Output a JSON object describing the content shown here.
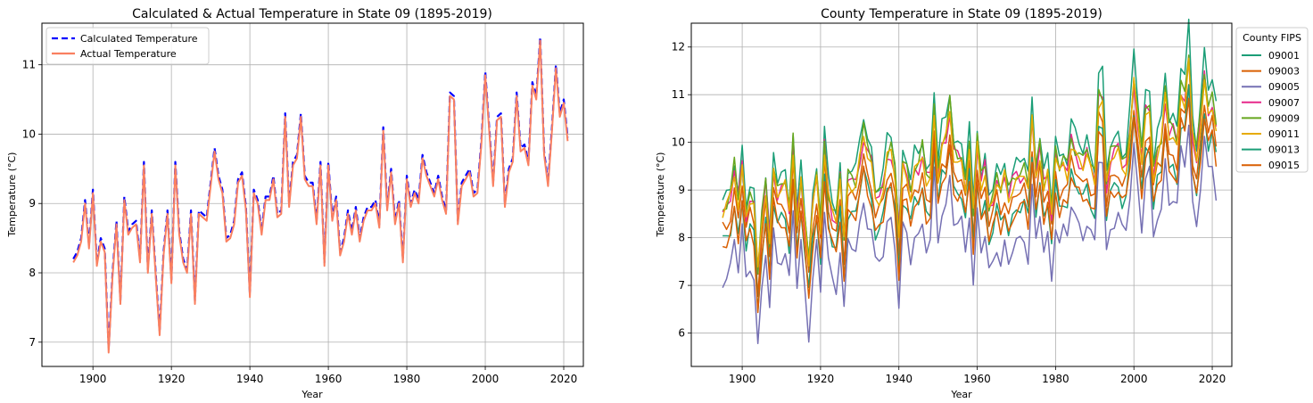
{
  "chart_data": [
    {
      "type": "line",
      "title": "Calculated & Actual Temperature in State 09 (1895-2019)",
      "xlabel": "Year",
      "ylabel": "Temperature (°C)",
      "xlim": [
        1887,
        2025
      ],
      "ylim": [
        6.65,
        11.6
      ],
      "xticks": [
        1900,
        1920,
        1940,
        1960,
        1980,
        2000,
        2020
      ],
      "yticks": [
        7,
        8,
        9,
        10,
        11
      ],
      "grid": true,
      "legend_position": "top-left",
      "x_start": 1895,
      "x_end": 2019,
      "series": [
        {
          "name": "Calculated Temperature",
          "color": "#0000ff",
          "style": "dashed",
          "values": [
            8.2,
            8.3,
            8.5,
            9.05,
            8.4,
            9.2,
            8.15,
            8.5,
            8.35,
            6.9,
            8.0,
            8.75,
            7.6,
            9.1,
            8.6,
            8.7,
            8.75,
            8.2,
            9.6,
            8.05,
            8.9,
            8.0,
            7.15,
            8.3,
            8.9,
            7.9,
            9.6,
            8.6,
            8.2,
            8.05,
            8.9,
            7.6,
            8.9,
            8.85,
            8.8,
            9.3,
            9.8,
            9.4,
            9.2,
            8.5,
            8.55,
            8.75,
            9.35,
            9.45,
            8.95,
            7.7,
            9.2,
            9.05,
            8.6,
            9.1,
            9.1,
            9.4,
            8.85,
            8.9,
            10.3,
            9.0,
            9.6,
            9.7,
            10.3,
            9.4,
            9.3,
            9.3,
            8.75,
            9.6,
            8.15,
            9.6,
            8.8,
            9.1,
            8.3,
            8.5,
            8.9,
            8.6,
            8.95,
            8.5,
            8.8,
            8.95,
            8.95,
            9.05,
            8.7,
            10.1,
            8.95,
            9.5,
            8.75,
            9.05,
            8.2,
            9.4,
            9.0,
            9.2,
            9.05,
            9.7,
            9.45,
            9.3,
            9.15,
            9.4,
            9.1,
            8.9,
            10.6,
            10.55,
            8.75,
            9.3,
            9.4,
            9.5,
            9.15,
            9.2,
            9.9,
            10.9,
            10.1,
            9.3,
            10.25,
            10.3,
            9.0,
            9.5,
            9.65,
            10.6,
            9.8,
            9.85,
            9.6,
            10.75,
            10.55,
            11.4,
            9.75,
            9.3,
            10.1,
            11.0,
            10.3,
            10.5,
            9.95
          ]
        },
        {
          "name": "Actual Temperature",
          "color": "#fa8060",
          "style": "solid",
          "values": [
            8.15,
            8.25,
            8.45,
            9.0,
            8.35,
            9.15,
            8.1,
            8.45,
            8.3,
            6.85,
            7.95,
            8.7,
            7.55,
            9.05,
            8.55,
            8.65,
            8.7,
            8.15,
            9.55,
            8.0,
            8.85,
            7.95,
            7.1,
            8.25,
            8.85,
            7.85,
            9.55,
            8.55,
            8.15,
            8.0,
            8.85,
            7.55,
            8.85,
            8.8,
            8.75,
            9.25,
            9.75,
            9.35,
            9.15,
            8.45,
            8.5,
            8.7,
            9.3,
            9.4,
            8.9,
            7.65,
            9.15,
            9.0,
            8.55,
            9.05,
            9.05,
            9.35,
            8.8,
            8.85,
            10.25,
            8.95,
            9.55,
            9.65,
            10.25,
            9.35,
            9.25,
            9.25,
            8.7,
            9.55,
            8.1,
            9.55,
            8.75,
            9.05,
            8.25,
            8.45,
            8.85,
            8.55,
            8.9,
            8.45,
            8.75,
            8.9,
            8.9,
            9.0,
            8.65,
            10.05,
            8.9,
            9.45,
            8.7,
            9.0,
            8.15,
            9.35,
            8.95,
            9.15,
            9.0,
            9.65,
            9.4,
            9.25,
            9.1,
            9.35,
            9.05,
            8.85,
            10.55,
            10.5,
            8.7,
            9.25,
            9.35,
            9.45,
            9.1,
            9.15,
            9.85,
            10.85,
            10.05,
            9.25,
            10.2,
            10.25,
            8.95,
            9.45,
            9.6,
            10.55,
            9.75,
            9.8,
            9.55,
            10.7,
            10.5,
            11.35,
            9.7,
            9.25,
            10.05,
            10.95,
            10.25,
            10.45,
            9.9
          ]
        }
      ]
    },
    {
      "type": "line",
      "title": "County Temperature in State 09 (1895-2019)",
      "xlabel": "Year",
      "ylabel": "Temperature (°C)",
      "xlim": [
        1887,
        2025
      ],
      "ylim": [
        5.3,
        12.5
      ],
      "xticks": [
        1900,
        1920,
        1940,
        1960,
        1980,
        2000,
        2020
      ],
      "yticks": [
        6,
        7,
        8,
        9,
        10,
        11,
        12
      ],
      "grid": true,
      "legend_title": "County FIPS",
      "legend_position": "outside right",
      "x_start": 1895,
      "x_end": 2019,
      "base": [
        8.2,
        8.3,
        8.5,
        9.05,
        8.4,
        9.2,
        8.15,
        8.5,
        8.35,
        6.9,
        8.0,
        8.75,
        7.6,
        9.1,
        8.6,
        8.7,
        8.75,
        8.2,
        9.6,
        8.05,
        8.9,
        8.0,
        7.15,
        8.3,
        8.9,
        7.9,
        9.6,
        8.6,
        8.2,
        8.05,
        8.9,
        7.6,
        8.9,
        8.85,
        8.8,
        9.3,
        9.8,
        9.4,
        9.2,
        8.5,
        8.55,
        8.75,
        9.35,
        9.45,
        8.95,
        7.7,
        9.2,
        9.05,
        8.6,
        9.1,
        9.1,
        9.4,
        8.85,
        8.9,
        10.3,
        9.0,
        9.6,
        9.7,
        10.3,
        9.4,
        9.3,
        9.3,
        8.75,
        9.6,
        8.15,
        9.6,
        8.8,
        9.1,
        8.3,
        8.5,
        8.9,
        8.6,
        8.95,
        8.5,
        8.8,
        8.95,
        8.95,
        9.05,
        8.7,
        10.1,
        8.95,
        9.5,
        8.75,
        9.05,
        8.2,
        9.4,
        9.0,
        9.2,
        9.05,
        9.7,
        9.45,
        9.3,
        9.15,
        9.4,
        9.1,
        8.9,
        10.6,
        10.55,
        8.75,
        9.3,
        9.4,
        9.5,
        9.15,
        9.2,
        9.9,
        10.9,
        10.1,
        9.3,
        10.25,
        10.3,
        9.0,
        9.5,
        9.65,
        10.6,
        9.8,
        9.85,
        9.6,
        10.75,
        10.55,
        11.4,
        9.75,
        9.3,
        10.1,
        11.0,
        10.3,
        10.5,
        9.95
      ],
      "series": [
        {
          "name": "09001",
          "color": "#1b9e77",
          "offset": 0.65,
          "amp": 1.15
        },
        {
          "name": "09003",
          "color": "#d95f02",
          "offset": -0.05,
          "amp": 0.95
        },
        {
          "name": "09005",
          "color": "#7570b3",
          "offset": -1.05,
          "amp": 1.05
        },
        {
          "name": "09007",
          "color": "#e7298a",
          "offset": 0.35,
          "amp": 1.0
        },
        {
          "name": "09009",
          "color": "#66a61e",
          "offset": 0.45,
          "amp": 1.05
        },
        {
          "name": "09011",
          "color": "#e6ab02",
          "offset": 0.3,
          "amp": 1.0
        },
        {
          "name": "09013",
          "color": "#1b9e77",
          "offset": -0.35,
          "amp": 1.0
        },
        {
          "name": "09015",
          "color": "#d95f02",
          "offset": -0.4,
          "amp": 1.0
        }
      ]
    }
  ]
}
